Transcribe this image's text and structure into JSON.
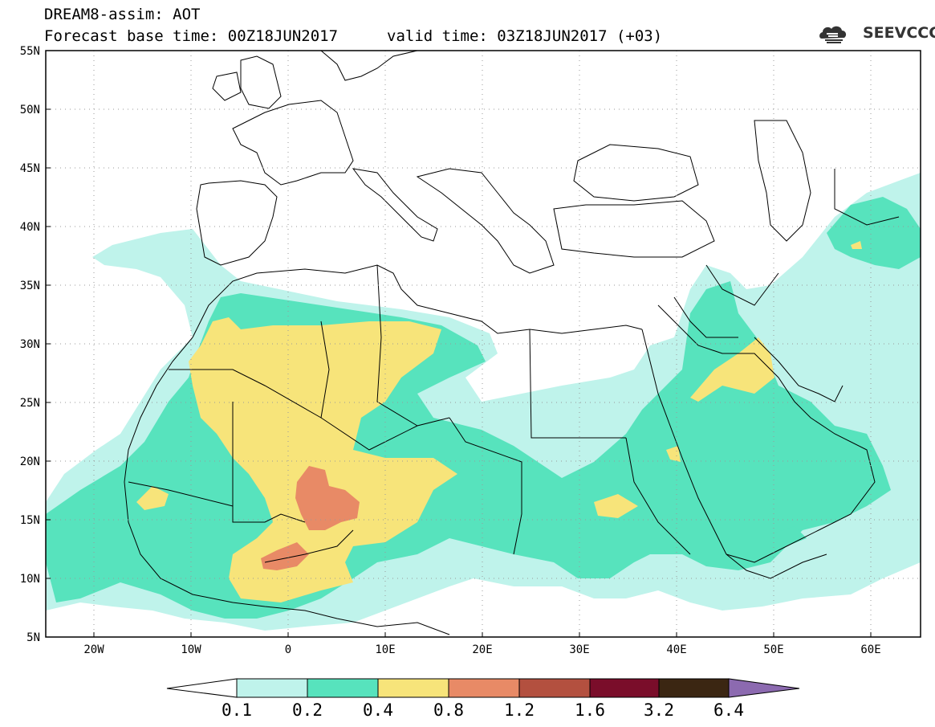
{
  "header": {
    "title": "DREAM8-assim: AOT",
    "base_time": "Forecast base time: 00Z18JUN2017",
    "valid_time": "valid time: 03Z18JUN2017 (+03)"
  },
  "logo": {
    "text": "SEEVCCC",
    "icon": "cloud-logo-icon"
  },
  "map": {
    "lat_range": [
      5,
      55
    ],
    "lon_range": [
      -25,
      65
    ],
    "lat_labels": [
      "55N",
      "50N",
      "45N",
      "40N",
      "35N",
      "30N",
      "25N",
      "20N",
      "15N",
      "10N",
      "5N"
    ],
    "lon_labels": [
      "20W",
      "10W",
      "0",
      "10E",
      "20E",
      "30E",
      "40E",
      "50E",
      "60E"
    ],
    "grid": "dotted",
    "variable": "aerosol optical thickness (dust)"
  },
  "colorbar": {
    "labels": [
      "0.1",
      "0.2",
      "0.4",
      "0.8",
      "1.2",
      "1.6",
      "3.2",
      "6.4"
    ],
    "colors": [
      "#ffffff",
      "#bff3eb",
      "#57e3bd",
      "#f7e47a",
      "#e88a66",
      "#b3503f",
      "#7a0d2a",
      "#3b2612",
      "#8c6ab0"
    ]
  }
}
